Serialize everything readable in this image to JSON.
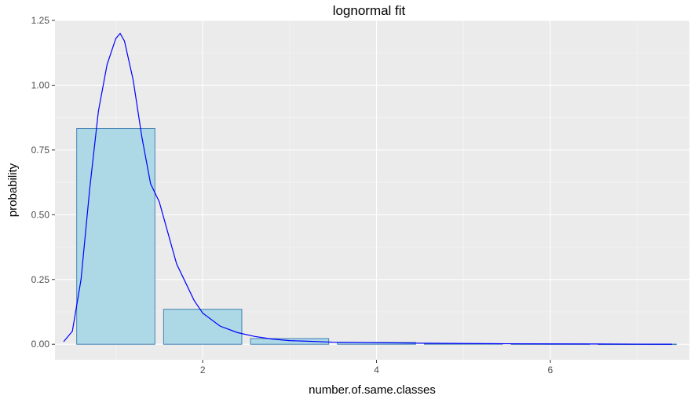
{
  "chart_data": {
    "type": "bar",
    "title": "lognormal fit",
    "xlabel": "number.of.same.classes",
    "ylabel": "probability",
    "xlim": [
      0.3,
      7.6
    ],
    "ylim": [
      -0.06,
      1.25
    ],
    "x_ticks": [
      2,
      4,
      6
    ],
    "y_ticks": [
      0.0,
      0.25,
      0.5,
      0.75,
      1.0,
      1.25
    ],
    "x_tick_labels": [
      "2",
      "4",
      "6"
    ],
    "y_tick_labels": [
      "0.00",
      "0.25",
      "0.50",
      "0.75",
      "1.00",
      "1.25"
    ],
    "grid": true,
    "series": [
      {
        "type": "bar",
        "x": [
          1,
          2,
          3,
          4,
          5,
          6,
          7
        ],
        "values": [
          0.833,
          0.135,
          0.022,
          0.007,
          0.002,
          0.001,
          0.0005
        ],
        "bar_width": 0.9,
        "fill": "#add8e6",
        "stroke": "#4682b4"
      },
      {
        "type": "line",
        "x": [
          0.4,
          0.5,
          0.6,
          0.7,
          0.8,
          0.9,
          1.0,
          1.05,
          1.1,
          1.2,
          1.3,
          1.4,
          1.5,
          1.6,
          1.7,
          1.8,
          1.9,
          2.0,
          2.2,
          2.4,
          2.6,
          2.8,
          3.0,
          3.5,
          4.0,
          4.5,
          5.0,
          5.5,
          6.0,
          6.5,
          7.0,
          7.4
        ],
        "values": [
          0.01,
          0.05,
          0.25,
          0.6,
          0.9,
          1.08,
          1.18,
          1.2,
          1.17,
          1.02,
          0.8,
          0.62,
          0.55,
          0.43,
          0.31,
          0.24,
          0.17,
          0.12,
          0.07,
          0.045,
          0.03,
          0.02,
          0.014,
          0.008,
          0.006,
          0.004,
          0.003,
          0.002,
          0.0015,
          0.001,
          0.0005,
          0.0003
        ],
        "stroke": "#0000ff"
      }
    ],
    "colors": {
      "panel_bg": "#ebebeb",
      "grid_major": "#ffffff",
      "grid_minor": "#f7f7f7",
      "tick": "#333333"
    }
  }
}
